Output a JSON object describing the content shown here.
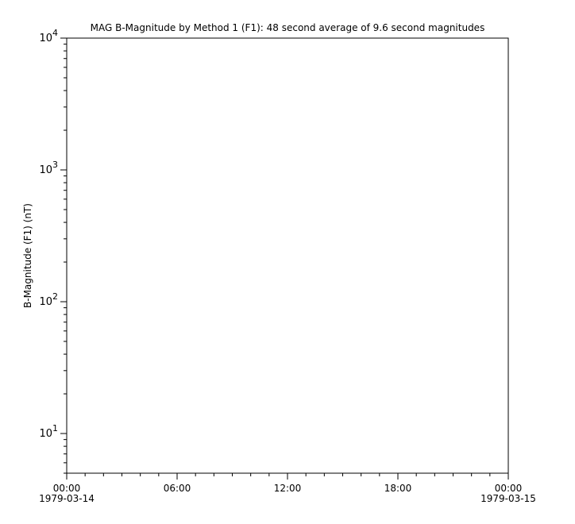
{
  "chart_data": {
    "type": "line",
    "title": "MAG  B-Magnitude by Method 1 (F1): 48 second average of 9.6 second magnitudes",
    "xlabel": "",
    "ylabel": "B-Magnitude (F1) (nT)",
    "yscale": "log",
    "ylim": [
      5,
      10000
    ],
    "xlim": [
      "1979-03-14T00:00",
      "1979-03-15T00:00"
    ],
    "y_ticks": [
      {
        "base": "10",
        "exp": "1",
        "value": 10
      },
      {
        "base": "10",
        "exp": "2",
        "value": 100
      },
      {
        "base": "10",
        "exp": "3",
        "value": 1000
      },
      {
        "base": "10",
        "exp": "4",
        "value": 10000
      }
    ],
    "x_ticks": [
      {
        "hours": 0,
        "time": "00:00",
        "date": "1979-03-14"
      },
      {
        "hours": 6,
        "time": "06:00",
        "date": ""
      },
      {
        "hours": 12,
        "time": "12:00",
        "date": ""
      },
      {
        "hours": 18,
        "time": "18:00",
        "date": ""
      },
      {
        "hours": 24,
        "time": "00:00",
        "date": "1979-03-15"
      }
    ],
    "x_minor_tick_hours": 1,
    "grid": false,
    "series": []
  }
}
